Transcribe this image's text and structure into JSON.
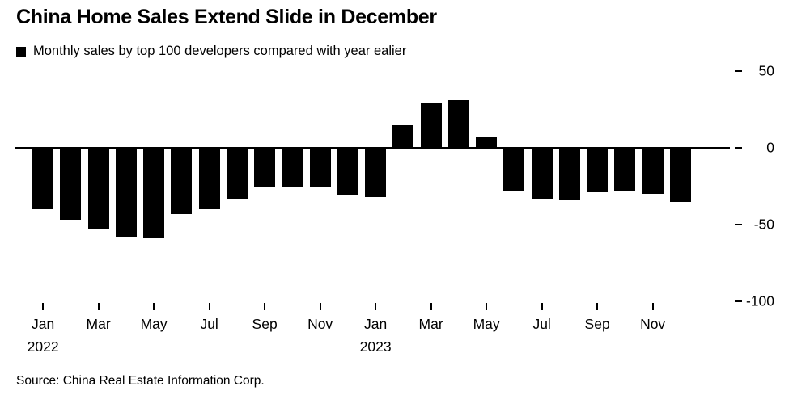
{
  "header": {
    "title": "China Home Sales Extend Slide in December",
    "legend_label": "Monthly sales by top 100 developers compared with year ealier"
  },
  "footer": {
    "source": "Source: China Real Estate Information Corp."
  },
  "chart_data": {
    "type": "bar",
    "title": "China Home Sales Extend Slide in December",
    "subtitle": "Monthly sales by top 100 developers compared with year ealier",
    "source": "Source: China Real Estate Information Corp.",
    "xlabel": "",
    "ylabel": "",
    "ylim": [
      -100,
      50
    ],
    "y_ticks": [
      50,
      0,
      -50,
      -100
    ],
    "grid": false,
    "legend_position": "top-left",
    "bar_color": "#000000",
    "categories": [
      "Jan 2022",
      "Feb 2022",
      "Mar 2022",
      "Apr 2022",
      "May 2022",
      "Jun 2022",
      "Jul 2022",
      "Aug 2022",
      "Sep 2022",
      "Oct 2022",
      "Nov 2022",
      "Dec 2022",
      "Jan 2023",
      "Feb 2023",
      "Mar 2023",
      "Apr 2023",
      "May 2023",
      "Jun 2023",
      "Jul 2023",
      "Aug 2023",
      "Sep 2023",
      "Oct 2023",
      "Nov 2023",
      "Dec 2023"
    ],
    "values": [
      -40,
      -47,
      -53,
      -58,
      -59,
      -43,
      -40,
      -33,
      -25,
      -26,
      -26,
      -31,
      -32,
      15,
      29,
      31,
      7,
      -28,
      -33,
      -34,
      -29,
      -28,
      -30,
      -35
    ],
    "x_ticks": [
      {
        "index": 0,
        "label": "Jan",
        "year": "2022"
      },
      {
        "index": 2,
        "label": "Mar"
      },
      {
        "index": 4,
        "label": "May"
      },
      {
        "index": 6,
        "label": "Jul"
      },
      {
        "index": 8,
        "label": "Sep"
      },
      {
        "index": 10,
        "label": "Nov"
      },
      {
        "index": 12,
        "label": "Jan",
        "year": "2023"
      },
      {
        "index": 14,
        "label": "Mar"
      },
      {
        "index": 16,
        "label": "May"
      },
      {
        "index": 18,
        "label": "Jul"
      },
      {
        "index": 20,
        "label": "Sep"
      },
      {
        "index": 22,
        "label": "Nov"
      }
    ]
  }
}
